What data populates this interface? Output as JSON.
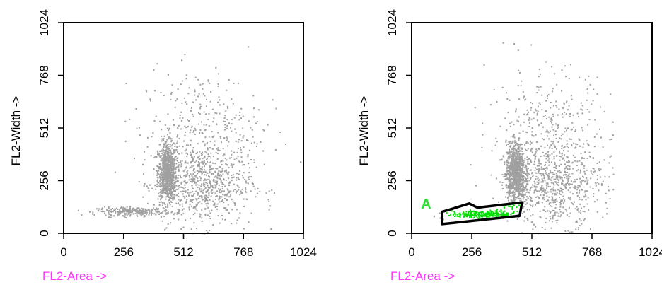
{
  "chart_data": [
    {
      "type": "scatter",
      "title": "",
      "xlabel": "FL2-Area ->",
      "ylabel": "FL2-Width ->",
      "xlim": [
        0,
        1024
      ],
      "ylim": [
        0,
        1024
      ],
      "xticks": [
        0,
        256,
        512,
        768,
        1024
      ],
      "yticks": [
        0,
        256,
        512,
        768,
        1024
      ],
      "xtick_labels": [
        "0",
        "256",
        "512",
        "768",
        "1024"
      ],
      "ytick_labels": [
        "0",
        "256",
        "512",
        "768",
        "1024"
      ],
      "grid": false,
      "point_color": "#a0a0a0",
      "clusters": [
        {
          "center": [
            440,
            300
          ],
          "spread": [
            40,
            140
          ],
          "count": 900
        },
        {
          "center": [
            300,
            110
          ],
          "spread": [
            160,
            20
          ],
          "count": 260
        },
        {
          "center": [
            600,
            240
          ],
          "spread": [
            200,
            200
          ],
          "count": 700
        },
        {
          "center": [
            580,
            500
          ],
          "spread": [
            260,
            300
          ],
          "count": 350
        }
      ]
    },
    {
      "type": "scatter",
      "title": "",
      "xlabel": "FL2-Area ->",
      "ylabel": "FL2-Width ->",
      "xlim": [
        0,
        1024
      ],
      "ylim": [
        0,
        1024
      ],
      "xticks": [
        0,
        256,
        512,
        768,
        1024
      ],
      "yticks": [
        0,
        256,
        512,
        768,
        1024
      ],
      "xtick_labels": [
        "0",
        "256",
        "512",
        "768",
        "1024"
      ],
      "ytick_labels": [
        "0",
        "256",
        "512",
        "768",
        "1024"
      ],
      "grid": false,
      "point_color": "#a0a0a0",
      "gated_point_color": "#00dd00",
      "gate": {
        "label": "A",
        "label_color": "#33dd33",
        "stroke_color": "#000000",
        "polygon": [
          [
            130,
            45
          ],
          [
            130,
            105
          ],
          [
            175,
            120
          ],
          [
            245,
            145
          ],
          [
            280,
            125
          ],
          [
            470,
            150
          ],
          [
            460,
            85
          ],
          [
            130,
            45
          ]
        ]
      },
      "clusters": [
        {
          "center": [
            440,
            300
          ],
          "spread": [
            40,
            140
          ],
          "count": 900
        },
        {
          "center": [
            300,
            95
          ],
          "spread": [
            150,
            18
          ],
          "count": 260
        },
        {
          "center": [
            600,
            240
          ],
          "spread": [
            200,
            200
          ],
          "count": 700
        },
        {
          "center": [
            580,
            500
          ],
          "spread": [
            260,
            300
          ],
          "count": 350
        }
      ]
    }
  ],
  "colors": {
    "axis_title": "#ff33ff",
    "frame": "#000000"
  }
}
